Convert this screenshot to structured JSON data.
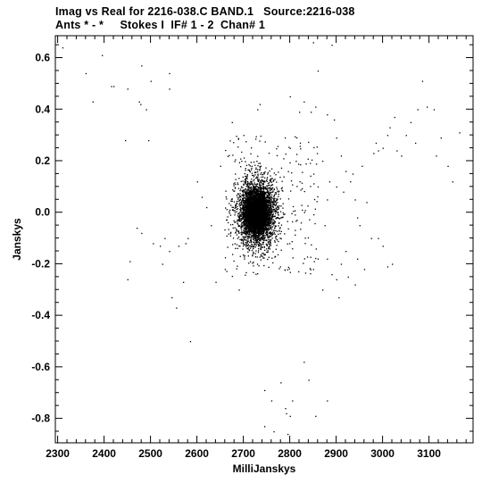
{
  "chart_data": {
    "type": "scatter",
    "title_lines": [
      "Imag vs Real for 2216-038.C BAND.1   Source:2216-038",
      "Ants * - *     Stokes I  IF# 1 - 2  Chan# 1"
    ],
    "xlabel": "MilliJanskys",
    "ylabel": "Janskys",
    "xlim": [
      2295,
      3195
    ],
    "ylim": [
      -0.895,
      0.685
    ],
    "x_ticks": [
      2300,
      2400,
      2500,
      2600,
      2700,
      2800,
      2900,
      3000,
      3100
    ],
    "y_ticks": [
      -0.8,
      -0.6,
      -0.4,
      -0.2,
      0.0,
      0.2,
      0.4,
      0.6
    ],
    "y_tick_labels": [
      "-0.8",
      "-0.6",
      "-0.4",
      "-0.2",
      "0.0",
      "0.2",
      "0.4",
      "0.6"
    ],
    "grid": false,
    "cluster": {
      "center": [
        2728,
        0.0
      ],
      "core_sd": [
        12,
        0.035
      ],
      "wide_sd": [
        22,
        0.07
      ],
      "n_core": 4200,
      "n_wide": 2400,
      "n_halo": 220,
      "halo_range_x": [
        2660,
        2860
      ],
      "halo_range_y": [
        -0.25,
        0.3
      ]
    },
    "points": [
      [
        2310,
        0.64
      ],
      [
        2395,
        0.61
      ],
      [
        2360,
        0.54
      ],
      [
        2375,
        0.43
      ],
      [
        2415,
        0.49
      ],
      [
        2420,
        0.49
      ],
      [
        2445,
        0.28
      ],
      [
        2450,
        0.48
      ],
      [
        2475,
        0.43
      ],
      [
        2478,
        0.42
      ],
      [
        2480,
        0.57
      ],
      [
        2490,
        0.4
      ],
      [
        2495,
        0.28
      ],
      [
        2500,
        0.51
      ],
      [
        2540,
        0.54
      ],
      [
        2540,
        0.48
      ],
      [
        2470,
        -0.06
      ],
      [
        2480,
        -0.08
      ],
      [
        2505,
        -0.12
      ],
      [
        2520,
        -0.13
      ],
      [
        2525,
        -0.2
      ],
      [
        2530,
        -0.1
      ],
      [
        2540,
        -0.15
      ],
      [
        2545,
        -0.33
      ],
      [
        2555,
        -0.37
      ],
      [
        2560,
        -0.13
      ],
      [
        2570,
        -0.27
      ],
      [
        2575,
        -0.12
      ],
      [
        2580,
        -0.1
      ],
      [
        2585,
        -0.5
      ],
      [
        2455,
        -0.19
      ],
      [
        2450,
        -0.26
      ],
      [
        2600,
        0.12
      ],
      [
        2610,
        0.06
      ],
      [
        2620,
        0.02
      ],
      [
        2630,
        -0.05
      ],
      [
        2640,
        -0.27
      ],
      [
        2650,
        0.18
      ],
      [
        2660,
        -0.22
      ],
      [
        2675,
        0.35
      ],
      [
        2690,
        -0.3
      ],
      [
        2700,
        0.3
      ],
      [
        2730,
        0.4
      ],
      [
        2735,
        0.42
      ],
      [
        2745,
        -0.69
      ],
      [
        2760,
        -0.73
      ],
      [
        2780,
        -0.66
      ],
      [
        2790,
        -0.76
      ],
      [
        2792,
        -0.78
      ],
      [
        2800,
        -0.79
      ],
      [
        2805,
        -0.73
      ],
      [
        2745,
        -0.83
      ],
      [
        2765,
        -0.85
      ],
      [
        2795,
        -0.86
      ],
      [
        2830,
        -0.58
      ],
      [
        2840,
        -0.65
      ],
      [
        2855,
        -0.79
      ],
      [
        2880,
        -0.73
      ],
      [
        2850,
        0.66
      ],
      [
        2890,
        0.65
      ],
      [
        2860,
        0.55
      ],
      [
        2800,
        0.45
      ],
      [
        2820,
        0.39
      ],
      [
        2830,
        0.43
      ],
      [
        2845,
        0.39
      ],
      [
        2855,
        0.41
      ],
      [
        2880,
        0.38
      ],
      [
        2895,
        0.36
      ],
      [
        2900,
        0.29
      ],
      [
        2910,
        0.22
      ],
      [
        2920,
        0.16
      ],
      [
        2930,
        0.12
      ],
      [
        2940,
        0.05
      ],
      [
        2945,
        -0.02
      ],
      [
        2950,
        -0.05
      ],
      [
        2955,
        0.18
      ],
      [
        2965,
        0.04
      ],
      [
        2975,
        -0.1
      ],
      [
        2980,
        0.23
      ],
      [
        2985,
        0.27
      ],
      [
        2990,
        0.24
      ],
      [
        3000,
        0.25
      ],
      [
        3010,
        0.3
      ],
      [
        3015,
        0.33
      ],
      [
        3025,
        0.37
      ],
      [
        3030,
        0.24
      ],
      [
        3040,
        0.22
      ],
      [
        3050,
        0.3
      ],
      [
        3060,
        0.35
      ],
      [
        3070,
        0.27
      ],
      [
        3075,
        0.4
      ],
      [
        3085,
        0.51
      ],
      [
        3095,
        0.41
      ],
      [
        3110,
        0.4
      ],
      [
        3115,
        0.22
      ],
      [
        3125,
        0.29
      ],
      [
        3140,
        0.18
      ],
      [
        3150,
        0.12
      ],
      [
        3165,
        0.31
      ],
      [
        2990,
        -0.1
      ],
      [
        3000,
        -0.13
      ],
      [
        3010,
        -0.21
      ],
      [
        3020,
        -0.2
      ],
      [
        2960,
        -0.22
      ],
      [
        2940,
        -0.28
      ],
      [
        2920,
        -0.15
      ],
      [
        2880,
        -0.18
      ],
      [
        2870,
        -0.3
      ],
      [
        2860,
        -0.18
      ],
      [
        2850,
        -0.22
      ],
      [
        2890,
        -0.24
      ],
      [
        2900,
        -0.26
      ],
      [
        2905,
        -0.33
      ],
      [
        2910,
        -0.2
      ],
      [
        2925,
        -0.25
      ],
      [
        2945,
        -0.18
      ],
      [
        2875,
        -0.05
      ],
      [
        2880,
        0.05
      ],
      [
        2885,
        0.12
      ],
      [
        2860,
        0.1
      ],
      [
        2870,
        0.2
      ],
      [
        2900,
        0.1
      ],
      [
        2915,
        0.08
      ],
      [
        2935,
        0.15
      ]
    ]
  }
}
